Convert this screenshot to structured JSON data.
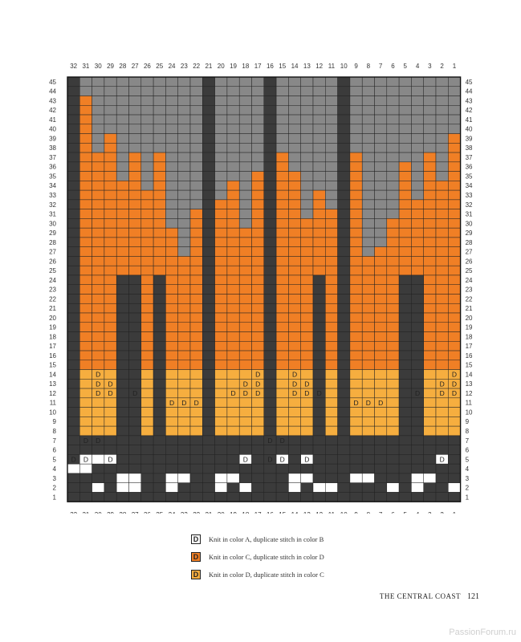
{
  "chart": {
    "columns": [
      32,
      31,
      30,
      29,
      28,
      27,
      26,
      25,
      24,
      23,
      22,
      21,
      20,
      19,
      18,
      17,
      16,
      15,
      14,
      13,
      12,
      11,
      10,
      9,
      8,
      7,
      6,
      5,
      4,
      3,
      2,
      1
    ],
    "rows": [
      45,
      44,
      43,
      42,
      41,
      40,
      39,
      38,
      37,
      36,
      35,
      34,
      33,
      32,
      31,
      30,
      29,
      28,
      27,
      26,
      25,
      24,
      23,
      22,
      21,
      20,
      19,
      18,
      17,
      16,
      15,
      14,
      13,
      12,
      11,
      10,
      9,
      8,
      7,
      6,
      5,
      4,
      3,
      2,
      1
    ],
    "symbol": "D",
    "colors": {
      "dark": "#3b3b3b",
      "gray": "#888888",
      "orange": "#f07f25",
      "yellow": "#f6ae3f",
      "white": "#ffffff",
      "gridline": "#222222"
    }
  },
  "legend": [
    {
      "color": "#ffffff",
      "symbol": "D",
      "text": "Knit in color A, duplicate stitch in color B"
    },
    {
      "color": "#f07f25",
      "symbol": "D",
      "text": "Knit in color C, duplicate stitch in color D"
    },
    {
      "color": "#f6ae3f",
      "symbol": "D",
      "text": "Knit in color D, duplicate stitch in color C"
    }
  ],
  "footer": {
    "title": "THE CENTRAL COAST",
    "page": "121"
  },
  "watermark": "PassionForum.ru"
}
